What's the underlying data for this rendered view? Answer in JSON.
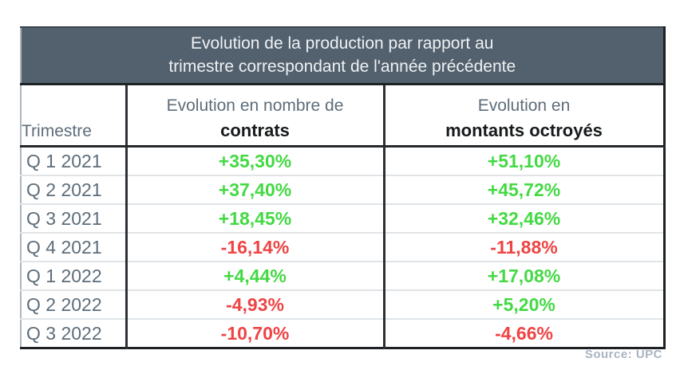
{
  "table": {
    "title_line1": "Evolution de la production par rapport au",
    "title_line2": "trimestre correspondant de l'année précédente",
    "col1_header": "Trimestre",
    "col2_header_line1": "Evolution en nombre de",
    "col2_header_line2": "contrats",
    "col3_header_line1": "Evolution en",
    "col3_header_line2": "montants octroyés",
    "rows": [
      {
        "quarter": "Q 1 2021",
        "contracts": "+35,30%",
        "amounts": "+51,10%"
      },
      {
        "quarter": "Q 2 2021",
        "contracts": "+37,40%",
        "amounts": "+45,72%"
      },
      {
        "quarter": "Q 3 2021",
        "contracts": "+18,45%",
        "amounts": "+32,46%"
      },
      {
        "quarter": "Q 4 2021",
        "contracts": "-16,14%",
        "amounts": "-11,88%"
      },
      {
        "quarter": "Q 1 2022",
        "contracts": "+4,44%",
        "amounts": "+17,08%"
      },
      {
        "quarter": "Q 2 2022",
        "contracts": "-4,93%",
        "amounts": "+5,20%"
      },
      {
        "quarter": "Q 3 2022",
        "contracts": "-10,70%",
        "amounts": "-4,66%"
      }
    ]
  },
  "source": {
    "label": "Source: UPC"
  },
  "colors": {
    "positive": "#44d944",
    "negative": "#ee4444",
    "header_bg": "#53616f",
    "muted_text": "#5d6d7a",
    "source_text": "#a9b4c1"
  },
  "chart_data": {
    "type": "table",
    "title": "Evolution de la production par rapport au trimestre correspondant de l'année précédente",
    "columns": [
      "Trimestre",
      "Evolution en nombre de contrats",
      "Evolution en montants octroyés"
    ],
    "rows": [
      [
        "Q 1 2021",
        "+35,30%",
        "+51,10%"
      ],
      [
        "Q 2 2021",
        "+37,40%",
        "+45,72%"
      ],
      [
        "Q 3 2021",
        "+18,45%",
        "+32,46%"
      ],
      [
        "Q 4 2021",
        "-16,14%",
        "-11,88%"
      ],
      [
        "Q 1 2022",
        "+4,44%",
        "+17,08%"
      ],
      [
        "Q 2 2022",
        "-4,93%",
        "+5,20%"
      ],
      [
        "Q 3 2022",
        "-10,70%",
        "-4,66%"
      ]
    ],
    "categories": [
      "Q 1 2021",
      "Q 2 2021",
      "Q 3 2021",
      "Q 4 2021",
      "Q 1 2022",
      "Q 2 2022",
      "Q 3 2022"
    ],
    "series": [
      {
        "name": "Evolution en nombre de contrats",
        "values": [
          35.3,
          37.4,
          18.45,
          -16.14,
          4.44,
          -4.93,
          -10.7
        ]
      },
      {
        "name": "Evolution en montants octroyés",
        "values": [
          51.1,
          45.72,
          32.46,
          -11.88,
          17.08,
          5.2,
          -4.66
        ]
      }
    ],
    "value_unit": "%",
    "positive_color": "#44d944",
    "negative_color": "#ee4444",
    "source": "Source: UPC"
  }
}
